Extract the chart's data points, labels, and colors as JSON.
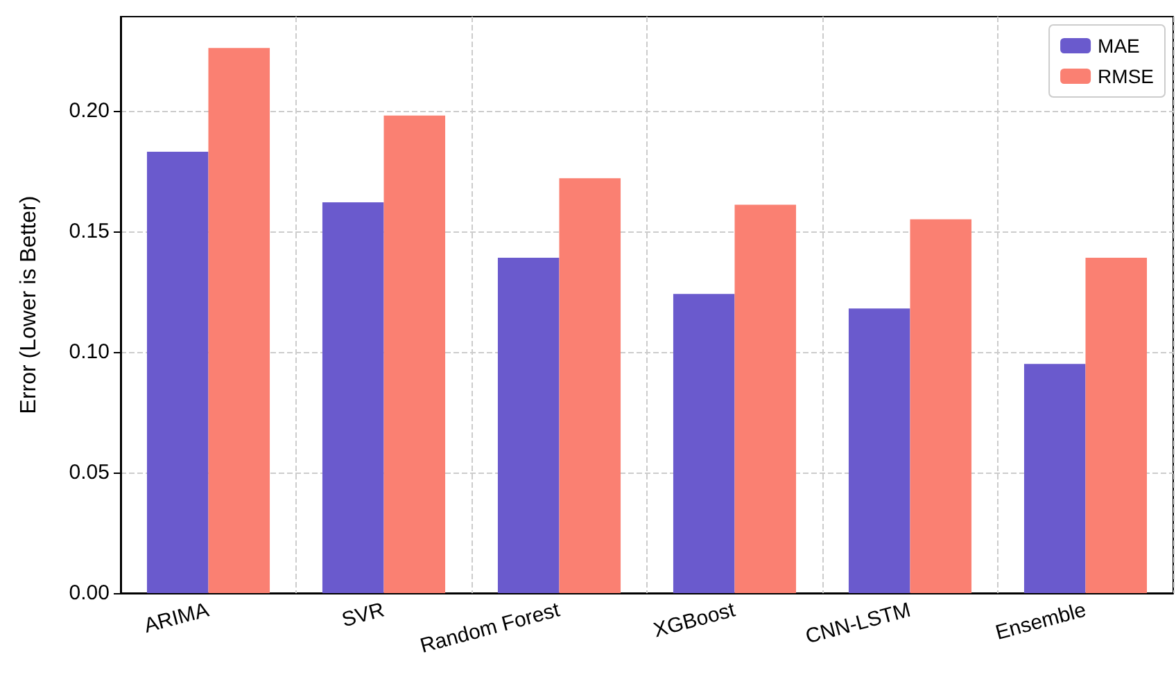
{
  "chart_data": {
    "type": "bar",
    "ylabel": "Error (Lower is Better)",
    "categories": [
      "ARIMA",
      "SVR",
      "Random Forest",
      "XGBoost",
      "CNN-LSTM",
      "Ensemble"
    ],
    "series": [
      {
        "name": "MAE",
        "color": "#6a5acd",
        "values": [
          0.183,
          0.162,
          0.139,
          0.124,
          0.118,
          0.095
        ]
      },
      {
        "name": "RMSE",
        "color": "#fa8072",
        "values": [
          0.226,
          0.198,
          0.172,
          0.161,
          0.155,
          0.139
        ]
      }
    ],
    "ylim": [
      0,
      0.239
    ],
    "yticks": [
      {
        "value": 0,
        "label": "0.00"
      },
      {
        "value": 0.05,
        "label": "0.05"
      },
      {
        "value": 0.1,
        "label": "0.10"
      },
      {
        "value": 0.15,
        "label": "0.15"
      },
      {
        "value": 0.2,
        "label": "0.20"
      }
    ],
    "grid": true,
    "legend": "top right"
  }
}
